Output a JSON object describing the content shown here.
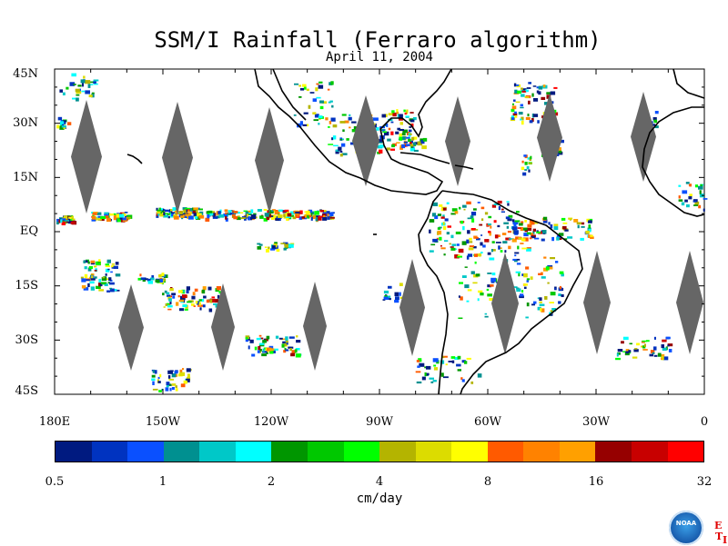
{
  "title": "SSM/I Rainfall (Ferraro algorithm)",
  "subtitle": "April 11, 2004",
  "map": {
    "lat_labels": [
      "45N",
      "30N",
      "15N",
      "EQ",
      "15S",
      "30S",
      "45S"
    ],
    "lon_labels": [
      "180E",
      "150W",
      "120W",
      "90W",
      "60W",
      "30W",
      "0"
    ],
    "extent": {
      "lon_min": -180,
      "lon_max": 0,
      "lat_min": -45,
      "lat_max": 45
    },
    "swath_gap_color": "#666666",
    "coastline_color": "#000000"
  },
  "colorbar": {
    "ticks": [
      "0.5",
      "1",
      "2",
      "4",
      "8",
      "16",
      "32"
    ],
    "units": "cm/day",
    "colors": [
      "#001a80",
      "#0033c0",
      "#0a50ff",
      "#009090",
      "#00c8c8",
      "#00ffff",
      "#009600",
      "#00c800",
      "#00ff00",
      "#b4b400",
      "#dcdc00",
      "#ffff00",
      "#ff5a00",
      "#ff8200",
      "#ffa000",
      "#960000",
      "#c80000",
      "#ff0000"
    ]
  },
  "logo": {
    "text": "NOAA",
    "letters": [
      "E",
      "T",
      "I"
    ]
  }
}
